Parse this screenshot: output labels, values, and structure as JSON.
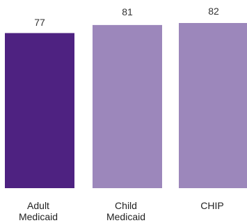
{
  "chart_data": {
    "type": "bar",
    "categories": [
      {
        "line1": "Adult",
        "line2": "Medicaid"
      },
      {
        "line1": "Child",
        "line2": "Medicaid"
      },
      {
        "line1": "CHIP",
        "line2": ""
      }
    ],
    "values": [
      77,
      81,
      82
    ],
    "value_labels": [
      "77",
      "81",
      "82"
    ],
    "bar_colors": [
      "#4e2281",
      "#9c87bb",
      "#9c87bb"
    ],
    "ylim": [
      0,
      82
    ],
    "grid": false,
    "legend": "none"
  }
}
